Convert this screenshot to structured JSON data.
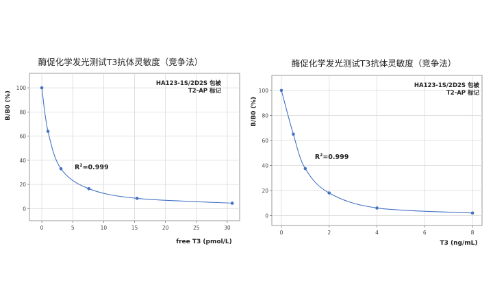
{
  "chart_data": [
    {
      "type": "scatter",
      "title": "酶促化学发光测试T3抗体灵敏度（竞争法）",
      "xlabel": "free T3 (pmol/L)",
      "ylabel": "B/B0 (%)",
      "xlim": [
        -2,
        32
      ],
      "ylim": [
        -10,
        112
      ],
      "xticks": [
        0,
        5,
        10,
        15,
        20,
        25,
        30
      ],
      "yticks": [
        0,
        20,
        40,
        60,
        80,
        100
      ],
      "xtick_labels": [
        "0",
        "5",
        "10",
        "15",
        "20",
        "25",
        "30"
      ],
      "ytick_labels": [
        "0",
        "20",
        "40",
        "60",
        "80",
        "100"
      ],
      "grid": true,
      "fit_line": "smooth curve through points",
      "annotation_lines": [
        "HA123-1S/2D2S 包被",
        "T2-AP 标记"
      ],
      "r2_label": "R",
      "r2_exp": "2",
      "r2_value": "=0.999",
      "series": [
        {
          "x": [
            0,
            1,
            3.1,
            7.6,
            15.4,
            30.8
          ],
          "y": [
            100,
            64,
            33,
            16.5,
            8.5,
            4.5
          ]
        }
      ],
      "color": "#4472c4"
    },
    {
      "type": "scatter",
      "title": "酶促化学发光测试T3抗体灵敏度（竞争法）",
      "xlabel": "T3 (ng/mL)",
      "ylabel": "B/B0 (%)",
      "xlim": [
        -0.4,
        8.4
      ],
      "ylim": [
        -8,
        112
      ],
      "xticks": [
        0,
        2,
        4,
        6,
        8
      ],
      "yticks": [
        0,
        20,
        40,
        60,
        80,
        100
      ],
      "xtick_labels": [
        "0",
        "2",
        "4",
        "6",
        "8"
      ],
      "ytick_labels": [
        "0",
        "20",
        "40",
        "60",
        "80",
        "100"
      ],
      "grid": true,
      "fit_line": "smooth curve through points",
      "annotation_lines": [
        "HA123-1S/2D2S 包被",
        "T2-AP 标记"
      ],
      "r2_label": "R",
      "r2_exp": "2",
      "r2_value": "=0.999",
      "series": [
        {
          "x": [
            0,
            0.5,
            1,
            2,
            4,
            8
          ],
          "y": [
            100,
            65,
            37.5,
            18,
            6,
            2
          ]
        }
      ],
      "color": "#4472c4"
    }
  ]
}
